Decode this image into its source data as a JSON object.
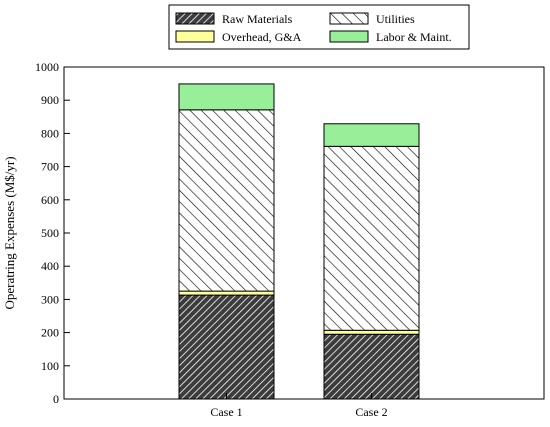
{
  "chart_data": {
    "type": "bar",
    "stacked": true,
    "categories": [
      "Case 1",
      "Case 2"
    ],
    "series": [
      {
        "name": "Raw Materials",
        "values": [
          313,
          195
        ],
        "fill": "#3c3c3c",
        "pattern": "dense-hatch"
      },
      {
        "name": "Overhead, G&A",
        "values": [
          12,
          12
        ],
        "fill": "#ffff99",
        "pattern": "solid"
      },
      {
        "name": "Utilities",
        "values": [
          546,
          554
        ],
        "fill": "#ffffff",
        "pattern": "backslash-hatch"
      },
      {
        "name": "Labor & Maint.",
        "values": [
          78,
          68
        ],
        "fill": "#99ee99",
        "pattern": "solid"
      }
    ],
    "ylabel": "Operatring Expenses (M$/yr)",
    "xlabel": "",
    "title": "",
    "ylim": [
      0,
      1000
    ],
    "yticks": [
      0,
      100,
      200,
      300,
      400,
      500,
      600,
      700,
      800,
      900,
      1000
    ],
    "grid": false,
    "legend": {
      "placement": "top-center",
      "entries": [
        {
          "label": "Raw Materials",
          "series": 0
        },
        {
          "label": "Utilities",
          "series": 2
        },
        {
          "label": "Overhead, G&A",
          "series": 1
        },
        {
          "label": "Labor & Maint.",
          "series": 3
        }
      ]
    }
  }
}
